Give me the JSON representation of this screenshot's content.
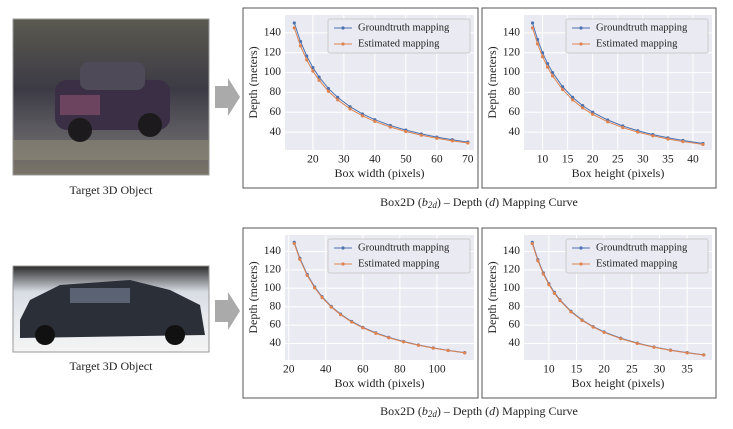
{
  "panels": [
    {
      "image_label": "Target 3D Object",
      "caption": [
        "Box2D (",
        "b",
        "2d",
        ") – Depth (",
        "d",
        ") Mapping Curve"
      ]
    },
    {
      "image_label": "Target 3D Object",
      "caption": [
        "Box2D (",
        "b",
        "2d",
        ") – Depth (",
        "d",
        ") Mapping Curve"
      ]
    }
  ],
  "chart_data": [
    {
      "type": "line",
      "xlabel": "Box width (pixels)",
      "ylabel": "Depth (meters)",
      "grid": true,
      "legend": "upper right",
      "x": [
        14,
        16,
        18,
        20,
        22,
        25,
        28,
        32,
        36,
        40,
        45,
        50,
        55,
        60,
        65,
        70
      ],
      "series": [
        {
          "name": "Groundtruth mapping",
          "color": "#4c72b0",
          "values": [
            150,
            131.3,
            116.7,
            105,
            95.5,
            84,
            75,
            65.6,
            58.3,
            52.5,
            46.7,
            42,
            38.2,
            35,
            32.3,
            30
          ]
        },
        {
          "name": "Estimated mapping",
          "color": "#dd8452",
          "values": [
            145,
            126.9,
            112.8,
            101.5,
            92.3,
            81.2,
            72.5,
            63.4,
            56.4,
            50.8,
            45.1,
            40.6,
            36.9,
            33.8,
            31.2,
            29
          ]
        }
      ],
      "xlim": [
        11,
        72
      ],
      "ylim": [
        22,
        158
      ],
      "xticks": [
        20,
        30,
        40,
        50,
        60,
        70
      ],
      "yticks": [
        40,
        60,
        80,
        100,
        120,
        140
      ]
    },
    {
      "type": "line",
      "xlabel": "Box height (pixels)",
      "ylabel": "Depth (meters)",
      "grid": true,
      "legend": "upper right",
      "x": [
        8,
        9,
        10,
        11,
        12,
        14,
        16,
        18,
        20,
        23,
        26,
        29,
        32,
        35,
        38,
        42
      ],
      "series": [
        {
          "name": "Groundtruth mapping",
          "color": "#4c72b0",
          "values": [
            150,
            133.3,
            120,
            109.1,
            100,
            85.7,
            75,
            66.7,
            60,
            52.2,
            46.2,
            41.4,
            37.5,
            34.3,
            31.6,
            28.6
          ]
        },
        {
          "name": "Estimated mapping",
          "color": "#dd8452",
          "values": [
            145,
            128.9,
            116,
            105.5,
            96.7,
            82.9,
            72.5,
            64.4,
            58,
            50.4,
            44.6,
            40,
            36.3,
            33.1,
            30.5,
            27.6
          ]
        }
      ],
      "xlim": [
        6.3,
        43.8
      ],
      "ylim": [
        22,
        158
      ],
      "xticks": [
        10,
        15,
        20,
        25,
        30,
        35,
        40
      ],
      "yticks": [
        40,
        60,
        80,
        100,
        120,
        140
      ]
    },
    {
      "type": "line",
      "xlabel": "Box width (pixels)",
      "ylabel": "Depth (meters)",
      "grid": true,
      "legend": "upper right",
      "x": [
        23,
        26,
        30,
        34,
        38,
        43,
        48,
        54,
        60,
        67,
        74,
        82,
        90,
        98,
        106,
        115
      ],
      "series": [
        {
          "name": "Groundtruth mapping",
          "color": "#4c72b0",
          "values": [
            150,
            132.7,
            115,
            101.5,
            90.8,
            80.2,
            71.9,
            63.9,
            57.5,
            51.5,
            46.6,
            42.1,
            38.3,
            35.2,
            32.5,
            30
          ]
        },
        {
          "name": "Estimated mapping",
          "color": "#dd8452",
          "values": [
            148.7,
            131.5,
            114,
            100.6,
            90,
            79.5,
            71.3,
            63.3,
            57,
            51,
            46.2,
            41.7,
            38,
            34.9,
            32.3,
            29.7
          ]
        }
      ],
      "xlim": [
        18,
        120
      ],
      "ylim": [
        22,
        158
      ],
      "xticks": [
        20,
        40,
        60,
        80,
        100
      ],
      "yticks": [
        40,
        60,
        80,
        100,
        120,
        140
      ]
    },
    {
      "type": "line",
      "xlabel": "Box height (pixels)",
      "ylabel": "Depth (meters)",
      "grid": true,
      "legend": "upper right",
      "x": [
        7,
        8,
        9,
        10,
        11,
        12,
        14,
        16,
        18,
        20,
        23,
        26,
        29,
        32,
        35,
        38
      ],
      "series": [
        {
          "name": "Groundtruth mapping",
          "color": "#4c72b0",
          "values": [
            150,
            131.3,
            116.7,
            105,
            95.5,
            87.5,
            75,
            65.6,
            58.3,
            52.5,
            45.7,
            40.4,
            36.2,
            32.8,
            30,
            27.6
          ]
        },
        {
          "name": "Estimated mapping",
          "color": "#dd8452",
          "values": [
            148.6,
            130,
            115.6,
            104,
            94.5,
            86.7,
            74.3,
            65,
            57.8,
            52,
            45.2,
            40,
            35.9,
            32.5,
            29.7,
            27.4
          ]
        }
      ],
      "xlim": [
        5.5,
        39.5
      ],
      "ylim": [
        22,
        158
      ],
      "xticks": [
        10,
        15,
        20,
        25,
        30,
        35
      ],
      "yticks": [
        40,
        60,
        80,
        100,
        120,
        140
      ]
    }
  ]
}
